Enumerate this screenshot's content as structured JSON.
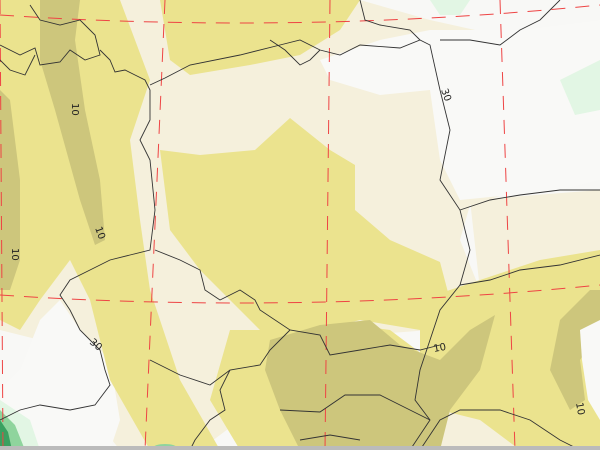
{
  "colors": {
    "background": "#f8f8f6",
    "cream": "#f5f0dc",
    "yellow": "#ebe38e",
    "olive": "#cdc67c",
    "green_light": "#e2f6e4",
    "green_mid": "#8fd49d",
    "green_dark": "#3aa060",
    "graticule": "#ee4444",
    "border": "#333333"
  },
  "contour_labels": [
    {
      "text": "10",
      "rotation": 90
    },
    {
      "text": "10",
      "rotation": 70
    },
    {
      "text": "10",
      "rotation": 90
    },
    {
      "text": "30",
      "rotation": 70
    },
    {
      "text": "30",
      "rotation": 40
    },
    {
      "text": "10",
      "rotation": -10
    },
    {
      "text": "10",
      "rotation": 80
    }
  ]
}
